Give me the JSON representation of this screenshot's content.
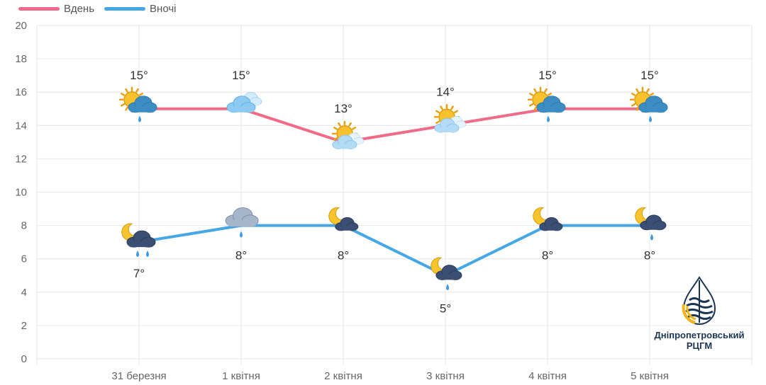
{
  "legend": {
    "day_label": "Вдень",
    "night_label": "Вночі"
  },
  "logo": {
    "line1": "Дніпропетровський",
    "line2": "РЦГМ"
  },
  "colors": {
    "day": "#f06b87",
    "night": "#46a7e6",
    "grid": "#e6e6e6"
  },
  "chart_data": {
    "type": "line",
    "categories": [
      "31 березня",
      "1 квітня",
      "2 квітня",
      "3 квітня",
      "4 квітня",
      "5 квітня"
    ],
    "ylim": [
      0,
      20
    ],
    "yticks": [
      "0",
      "2",
      "4",
      "6",
      "8",
      "10",
      "12",
      "14",
      "16",
      "18",
      "20"
    ],
    "grid": true,
    "legend_position": "top-left",
    "series": [
      {
        "name": "Вдень",
        "color": "#f06b87",
        "values": [
          15,
          15,
          13,
          14,
          15,
          15
        ],
        "labels": [
          "15°",
          "15°",
          "13°",
          "14°",
          "15°",
          "15°"
        ],
        "icons": [
          "sun-cloud-rain-icon",
          "cloud-icon",
          "sun-cloud-icon",
          "sun-cloud-icon",
          "sun-cloud-rain-icon",
          "sun-cloud-rain-icon"
        ]
      },
      {
        "name": "Вночі",
        "color": "#46a7e6",
        "values": [
          7,
          8,
          8,
          5,
          8,
          8
        ],
        "labels": [
          "7°",
          "8°",
          "8°",
          "5°",
          "8°",
          "8°"
        ],
        "icons": [
          "moon-cloud-heavy-rain-icon",
          "overcast-rain-icon",
          "moon-cloud-icon",
          "moon-cloud-rain-icon",
          "moon-cloud-icon",
          "moon-cloud-rain-icon"
        ]
      }
    ]
  }
}
